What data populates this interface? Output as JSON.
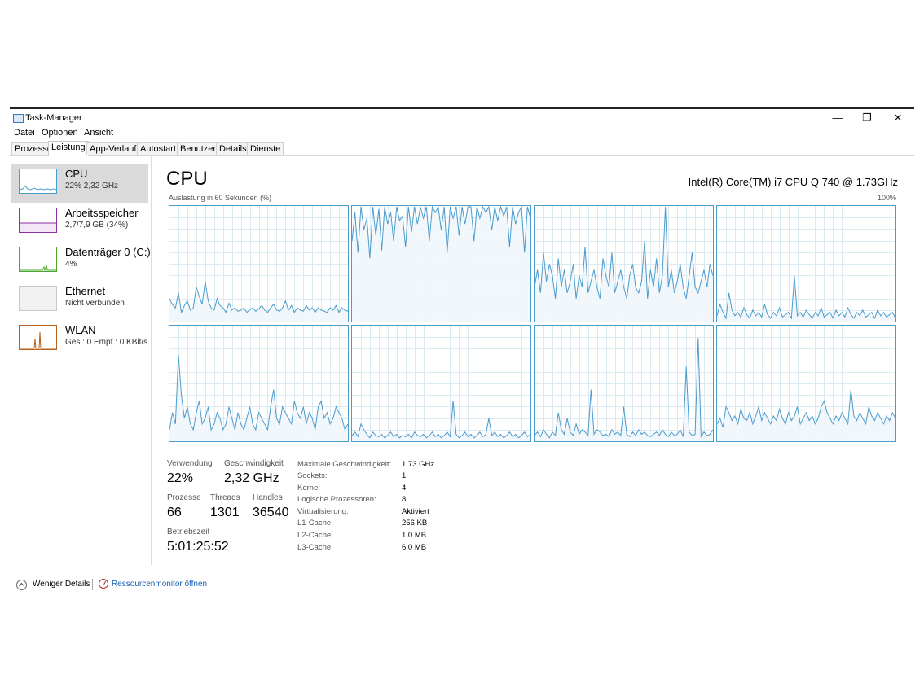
{
  "window": {
    "title": "Task-Manager",
    "controls": {
      "minimize": "—",
      "restore": "❐",
      "close": "✕"
    }
  },
  "menu": [
    "Datei",
    "Optionen",
    "Ansicht"
  ],
  "tabs": [
    "Prozesse",
    "Leistung",
    "App-Verlauf",
    "Autostart",
    "Benutzer",
    "Details",
    "Dienste"
  ],
  "active_tab": "Leistung",
  "sidebar": {
    "items": [
      {
        "name": "CPU",
        "sub": "22% 2,32 GHz",
        "color": "#4a9ccd"
      },
      {
        "name": "Arbeitsspeicher",
        "sub": "2,7/7,9 GB (34%)",
        "color": "#8b2ea0"
      },
      {
        "name": "Datenträger 0 (C:)",
        "sub": "4%",
        "color": "#4da832"
      },
      {
        "name": "Ethernet",
        "sub": "Nicht verbunden",
        "color": "#c8c8c8"
      },
      {
        "name": "WLAN",
        "sub": "Ges.: 0 Empf.: 0 KBit/s",
        "color": "#b8601e"
      }
    ]
  },
  "main": {
    "title": "CPU",
    "model": "Intel(R) Core(TM) i7 CPU Q 740 @ 1.73GHz",
    "chart_caption": "Auslastung in 60 Sekunden (%)",
    "chart_max": "100%"
  },
  "stats": {
    "usage_label": "Verwendung",
    "usage": "22%",
    "speed_label": "Geschwindigkeit",
    "speed": "2,32 GHz",
    "processes_label": "Prozesse",
    "processes": "66",
    "threads_label": "Threads",
    "threads": "1301",
    "handles_label": "Handles",
    "handles": "36540",
    "uptime_label": "Betriebszeit",
    "uptime": "5:01:25:52"
  },
  "details": [
    {
      "key": "Maximale Geschwindigkeit:",
      "value": "1,73 GHz"
    },
    {
      "key": "Sockets:",
      "value": "1"
    },
    {
      "key": "Kerne:",
      "value": "4"
    },
    {
      "key": "Logische Prozessoren:",
      "value": "8"
    },
    {
      "key": "Virtualisierung:",
      "value": "Aktiviert"
    },
    {
      "key": "L1-Cache:",
      "value": "256 KB"
    },
    {
      "key": "L2-Cache:",
      "value": "1,0 MB"
    },
    {
      "key": "L3-Cache:",
      "value": "6,0 MB"
    }
  ],
  "footer": {
    "less_details": "Weniger Details",
    "resource_monitor": "Ressourcenmonitor öffnen"
  },
  "colors": {
    "cpu_line": "#4a9ccd",
    "cpu_fill": "#f1f6fb",
    "grid": "#dbe9f2",
    "link": "#1a5fb4"
  },
  "chart_data": {
    "type": "line",
    "ylim": [
      0,
      100
    ],
    "series": [
      {
        "values": [
          20,
          15,
          12,
          25,
          8,
          14,
          18,
          10,
          12,
          30,
          22,
          15,
          35,
          18,
          12,
          10,
          20,
          14,
          12,
          8,
          16,
          10,
          12,
          9,
          10,
          12,
          8,
          10,
          12,
          9,
          11,
          14,
          10,
          8,
          12,
          15,
          10,
          9,
          12,
          18,
          10,
          14,
          8,
          12,
          10,
          9,
          14,
          10,
          12,
          8,
          12,
          10,
          9,
          8,
          12,
          10,
          14,
          8,
          12,
          10,
          9
        ]
      },
      {
        "values": [
          70,
          95,
          60,
          100,
          80,
          90,
          55,
          100,
          75,
          98,
          62,
          100,
          85,
          95,
          70,
          100,
          88,
          92,
          65,
          100,
          78,
          100,
          85,
          100,
          90,
          100,
          70,
          100,
          95,
          100,
          80,
          100,
          60,
          100,
          90,
          100,
          75,
          100,
          85,
          100,
          100,
          70,
          100,
          90,
          100,
          95,
          100,
          80,
          100,
          88,
          100,
          92,
          100,
          65,
          100,
          85,
          95,
          100,
          60,
          100,
          90
        ]
      },
      {
        "values": [
          30,
          45,
          25,
          60,
          35,
          50,
          40,
          20,
          55,
          30,
          45,
          25,
          35,
          50,
          20,
          40,
          30,
          65,
          25,
          35,
          45,
          30,
          20,
          55,
          40,
          30,
          60,
          25,
          35,
          45,
          30,
          20,
          40,
          50,
          30,
          25,
          35,
          70,
          20,
          45,
          30,
          55,
          25,
          40,
          100,
          30,
          45,
          25,
          35,
          50,
          30,
          20,
          40,
          60,
          30,
          25,
          35,
          45,
          30,
          50,
          40
        ]
      },
      {
        "values": [
          5,
          15,
          8,
          3,
          25,
          10,
          5,
          8,
          4,
          12,
          6,
          3,
          10,
          5,
          8,
          4,
          15,
          6,
          3,
          8,
          5,
          12,
          4,
          6,
          8,
          3,
          40,
          5,
          8,
          4,
          10,
          6,
          3,
          8,
          5,
          12,
          4,
          6,
          8,
          3,
          10,
          5,
          8,
          4,
          12,
          6,
          3,
          8,
          5,
          10,
          4,
          6,
          8,
          3,
          10,
          5,
          8,
          4,
          6,
          8,
          3
        ]
      },
      {
        "values": [
          10,
          25,
          15,
          75,
          40,
          20,
          30,
          15,
          10,
          25,
          35,
          15,
          20,
          30,
          10,
          15,
          25,
          20,
          10,
          15,
          30,
          20,
          10,
          25,
          15,
          10,
          20,
          30,
          15,
          10,
          25,
          20,
          15,
          10,
          30,
          45,
          20,
          15,
          30,
          25,
          20,
          15,
          35,
          25,
          20,
          30,
          15,
          25,
          20,
          10,
          30,
          35,
          20,
          25,
          15,
          20,
          30,
          25,
          20,
          10,
          15
        ]
      },
      {
        "values": [
          5,
          8,
          4,
          15,
          10,
          6,
          3,
          8,
          5,
          4,
          6,
          3,
          5,
          8,
          4,
          6,
          3,
          5,
          4,
          6,
          3,
          8,
          5,
          4,
          6,
          3,
          5,
          8,
          4,
          6,
          3,
          5,
          8,
          4,
          35,
          6,
          3,
          5,
          8,
          4,
          6,
          3,
          5,
          8,
          4,
          6,
          20,
          5,
          8,
          4,
          6,
          3,
          5,
          8,
          4,
          6,
          3,
          5,
          8,
          4,
          6
        ]
      },
      {
        "values": [
          5,
          8,
          4,
          10,
          6,
          3,
          8,
          5,
          25,
          10,
          6,
          20,
          8,
          5,
          15,
          6,
          10,
          8,
          5,
          45,
          6,
          10,
          8,
          5,
          6,
          4,
          10,
          6,
          8,
          5,
          30,
          6,
          4,
          8,
          5,
          10,
          6,
          8,
          5,
          4,
          6,
          8,
          5,
          10,
          6,
          4,
          8,
          5,
          6,
          10,
          4,
          65,
          8,
          5,
          6,
          90,
          4,
          8,
          5,
          6,
          10
        ]
      },
      {
        "values": [
          15,
          20,
          12,
          30,
          25,
          18,
          22,
          15,
          28,
          20,
          18,
          25,
          15,
          22,
          30,
          18,
          25,
          20,
          15,
          22,
          18,
          28,
          20,
          15,
          25,
          18,
          22,
          30,
          15,
          20,
          25,
          18,
          22,
          15,
          20,
          30,
          35,
          25,
          20,
          15,
          22,
          18,
          25,
          20,
          15,
          45,
          22,
          18,
          25,
          20,
          15,
          30,
          22,
          18,
          25,
          20,
          15,
          22,
          18,
          25,
          20
        ]
      }
    ]
  }
}
